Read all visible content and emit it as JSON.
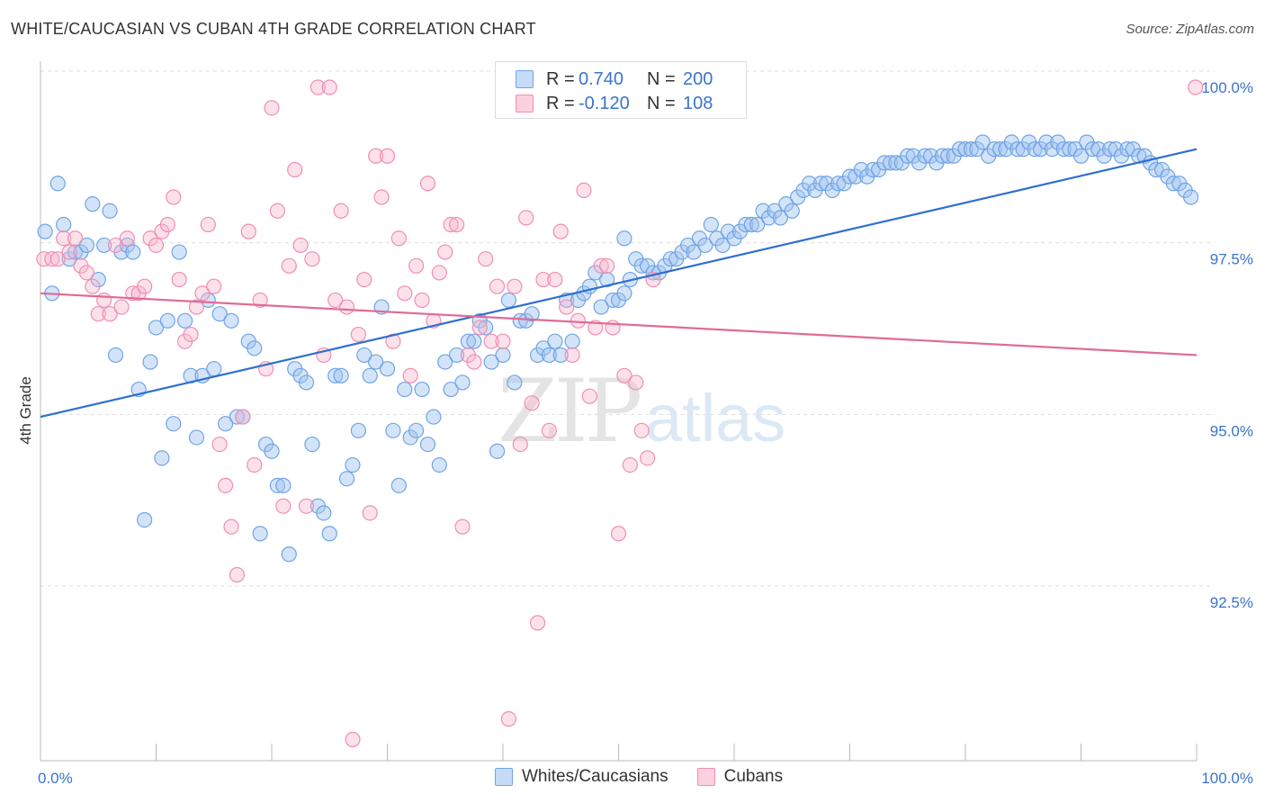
{
  "title": "WHITE/CAUCASIAN VS CUBAN 4TH GRADE CORRELATION CHART",
  "source": "Source: ZipAtlas.com",
  "watermark": "ZIPatlas",
  "legend_top": {
    "rows": [
      {
        "r_label": "R =",
        "r_value": "0.740",
        "n_label": "N =",
        "n_value": "200",
        "color": "#6fa4e6"
      },
      {
        "r_label": "R =",
        "r_value": "-0.120",
        "n_label": "N =",
        "n_value": "108",
        "color": "#ef8fb0"
      }
    ]
  },
  "legend_bottom": [
    {
      "label": "Whites/Caucasians",
      "color": "#6fa4e6"
    },
    {
      "label": "Cubans",
      "color": "#ef8fb0"
    }
  ],
  "chart_data": {
    "type": "scatter",
    "title": "WHITE/CAUCASIAN VS CUBAN 4TH GRADE CORRELATION CHART",
    "xlabel": "",
    "ylabel": "4th Grade",
    "xlim": [
      0,
      100
    ],
    "ylim": [
      90.0,
      100.4
    ],
    "x_tick_labels": [
      "0.0%",
      "100.0%"
    ],
    "y_ticks": [
      92.5,
      95.0,
      97.5,
      100.0
    ],
    "y_tick_labels": [
      "92.5%",
      "95.0%",
      "97.5%",
      "100.0%"
    ],
    "grid": true,
    "series": [
      {
        "name": "Whites/Caucasians",
        "color": "#6fa4e6",
        "trend": [
          [
            0,
            95.2
          ],
          [
            100,
            99.1
          ]
        ],
        "points": [
          [
            0.4,
            97.9
          ],
          [
            1,
            97
          ],
          [
            1.5,
            98.6
          ],
          [
            2,
            98
          ],
          [
            2.5,
            97.5
          ],
          [
            3,
            97.6
          ],
          [
            3.5,
            97.6
          ],
          [
            4,
            97.7
          ],
          [
            4.5,
            98.3
          ],
          [
            5,
            97.2
          ],
          [
            5.5,
            97.7
          ],
          [
            6,
            98.2
          ],
          [
            6.5,
            96.1
          ],
          [
            7,
            97.6
          ],
          [
            7.5,
            97.7
          ],
          [
            8,
            97.6
          ],
          [
            8.5,
            95.6
          ],
          [
            9,
            93.7
          ],
          [
            9.5,
            96
          ],
          [
            10,
            96.5
          ],
          [
            10.5,
            94.6
          ],
          [
            11,
            96.6
          ],
          [
            11.5,
            95.1
          ],
          [
            12,
            97.6
          ],
          [
            12.5,
            96.6
          ],
          [
            13,
            95.8
          ],
          [
            13.5,
            94.9
          ],
          [
            14,
            95.8
          ],
          [
            14.5,
            96.9
          ],
          [
            15,
            95.9
          ],
          [
            15.5,
            96.7
          ],
          [
            16,
            95.1
          ],
          [
            16.5,
            96.6
          ],
          [
            17,
            95.2
          ],
          [
            17.5,
            95.2
          ],
          [
            18,
            96.3
          ],
          [
            18.5,
            96.2
          ],
          [
            19,
            93.5
          ],
          [
            19.5,
            94.8
          ],
          [
            20,
            94.7
          ],
          [
            20.5,
            94.2
          ],
          [
            21,
            94.2
          ],
          [
            21.5,
            93.2
          ],
          [
            22,
            95.9
          ],
          [
            22.5,
            95.8
          ],
          [
            23,
            95.7
          ],
          [
            23.5,
            94.8
          ],
          [
            24,
            93.9
          ],
          [
            24.5,
            93.8
          ],
          [
            25,
            93.5
          ],
          [
            25.5,
            95.8
          ],
          [
            26,
            95.8
          ],
          [
            26.5,
            94.3
          ],
          [
            27,
            94.5
          ],
          [
            27.5,
            95
          ],
          [
            28,
            96.1
          ],
          [
            28.5,
            95.8
          ],
          [
            29,
            96
          ],
          [
            29.5,
            96.8
          ],
          [
            30,
            95.9
          ],
          [
            30.5,
            95
          ],
          [
            31,
            94.2
          ],
          [
            31.5,
            95.6
          ],
          [
            32,
            94.9
          ],
          [
            32.5,
            95
          ],
          [
            33,
            95.6
          ],
          [
            33.5,
            94.8
          ],
          [
            34,
            95.2
          ],
          [
            34.5,
            94.5
          ],
          [
            35,
            96
          ],
          [
            35.5,
            95.6
          ],
          [
            36,
            96.1
          ],
          [
            36.5,
            95.7
          ],
          [
            37,
            96.3
          ],
          [
            37.5,
            96.3
          ],
          [
            38,
            96.6
          ],
          [
            38.5,
            96.5
          ],
          [
            39,
            96
          ],
          [
            39.5,
            94.7
          ],
          [
            40,
            96.1
          ],
          [
            40.5,
            96.9
          ],
          [
            41,
            95.7
          ],
          [
            41.5,
            96.6
          ],
          [
            42,
            96.6
          ],
          [
            42.5,
            96.7
          ],
          [
            43,
            96.1
          ],
          [
            43.5,
            96.2
          ],
          [
            44,
            96.1
          ],
          [
            44.5,
            96.3
          ],
          [
            45,
            96.1
          ],
          [
            45.5,
            96.9
          ],
          [
            46,
            96.3
          ],
          [
            46.5,
            96.9
          ],
          [
            47,
            97
          ],
          [
            47.5,
            97.1
          ],
          [
            48,
            97.3
          ],
          [
            48.5,
            96.8
          ],
          [
            49,
            97.2
          ],
          [
            49.5,
            96.9
          ],
          [
            50,
            96.9
          ],
          [
            50.5,
            97
          ],
          [
            51,
            97.2
          ],
          [
            51.5,
            97.5
          ],
          [
            52,
            97.4
          ],
          [
            52.5,
            97.4
          ],
          [
            53,
            97.3
          ],
          [
            53.5,
            97.3
          ],
          [
            54,
            97.4
          ],
          [
            54.5,
            97.5
          ],
          [
            55,
            97.5
          ],
          [
            55.5,
            97.6
          ],
          [
            56,
            97.7
          ],
          [
            56.5,
            97.6
          ],
          [
            57,
            97.8
          ],
          [
            57.5,
            97.7
          ],
          [
            58,
            98
          ],
          [
            58.5,
            97.8
          ],
          [
            59,
            97.7
          ],
          [
            59.5,
            97.9
          ],
          [
            60,
            97.8
          ],
          [
            60.5,
            97.9
          ],
          [
            61,
            98
          ],
          [
            61.5,
            98
          ],
          [
            62,
            98
          ],
          [
            62.5,
            98.2
          ],
          [
            63,
            98.1
          ],
          [
            63.5,
            98.2
          ],
          [
            64,
            98.1
          ],
          [
            64.5,
            98.3
          ],
          [
            65,
            98.2
          ],
          [
            65.5,
            98.4
          ],
          [
            66,
            98.5
          ],
          [
            66.5,
            98.6
          ],
          [
            67,
            98.5
          ],
          [
            67.5,
            98.6
          ],
          [
            68,
            98.6
          ],
          [
            68.5,
            98.5
          ],
          [
            69,
            98.6
          ],
          [
            69.5,
            98.6
          ],
          [
            70,
            98.7
          ],
          [
            70.5,
            98.7
          ],
          [
            71,
            98.8
          ],
          [
            71.5,
            98.7
          ],
          [
            72,
            98.8
          ],
          [
            72.5,
            98.8
          ],
          [
            73,
            98.9
          ],
          [
            73.5,
            98.9
          ],
          [
            74,
            98.9
          ],
          [
            74.5,
            98.9
          ],
          [
            75,
            99
          ],
          [
            75.5,
            99
          ],
          [
            76,
            98.9
          ],
          [
            76.5,
            99
          ],
          [
            77,
            99
          ],
          [
            77.5,
            98.9
          ],
          [
            78,
            99
          ],
          [
            78.5,
            99
          ],
          [
            79,
            99
          ],
          [
            79.5,
            99.1
          ],
          [
            80,
            99.1
          ],
          [
            80.5,
            99.1
          ],
          [
            81,
            99.1
          ],
          [
            81.5,
            99.2
          ],
          [
            82,
            99
          ],
          [
            82.5,
            99.1
          ],
          [
            83,
            99.1
          ],
          [
            83.5,
            99.1
          ],
          [
            84,
            99.2
          ],
          [
            84.5,
            99.1
          ],
          [
            85,
            99.1
          ],
          [
            85.5,
            99.2
          ],
          [
            86,
            99.1
          ],
          [
            86.5,
            99.1
          ],
          [
            87,
            99.2
          ],
          [
            87.5,
            99.1
          ],
          [
            88,
            99.2
          ],
          [
            88.5,
            99.1
          ],
          [
            89,
            99.1
          ],
          [
            89.5,
            99.1
          ],
          [
            90,
            99
          ],
          [
            90.5,
            99.2
          ],
          [
            91,
            99.1
          ],
          [
            91.5,
            99.1
          ],
          [
            92,
            99
          ],
          [
            92.5,
            99.1
          ],
          [
            93,
            99.1
          ],
          [
            93.5,
            99
          ],
          [
            94,
            99.1
          ],
          [
            94.5,
            99.1
          ],
          [
            95,
            99
          ],
          [
            95.5,
            99
          ],
          [
            96,
            98.9
          ],
          [
            96.5,
            98.8
          ],
          [
            97,
            98.8
          ],
          [
            97.5,
            98.7
          ],
          [
            98,
            98.6
          ],
          [
            98.5,
            98.6
          ],
          [
            99,
            98.5
          ],
          [
            99.5,
            98.4
          ],
          [
            50.5,
            97.8
          ]
        ]
      },
      {
        "name": "Cubans",
        "color": "#ef8fb0",
        "trend": [
          [
            0,
            97.0
          ],
          [
            100,
            96.1
          ]
        ],
        "points": [
          [
            0.3,
            97.5
          ],
          [
            1,
            97.5
          ],
          [
            1.5,
            97.5
          ],
          [
            2,
            97.8
          ],
          [
            2.5,
            97.6
          ],
          [
            3,
            97.8
          ],
          [
            3.5,
            97.4
          ],
          [
            4,
            97.3
          ],
          [
            4.5,
            97.1
          ],
          [
            5,
            96.7
          ],
          [
            5.5,
            96.9
          ],
          [
            6,
            96.7
          ],
          [
            6.5,
            97.7
          ],
          [
            7,
            96.8
          ],
          [
            7.5,
            97.8
          ],
          [
            8,
            97
          ],
          [
            8.5,
            97
          ],
          [
            9,
            97.1
          ],
          [
            9.5,
            97.8
          ],
          [
            10,
            97.7
          ],
          [
            10.5,
            97.9
          ],
          [
            11,
            98
          ],
          [
            11.5,
            98.4
          ],
          [
            12,
            97.2
          ],
          [
            12.5,
            96.3
          ],
          [
            13,
            96.4
          ],
          [
            13.5,
            96.8
          ],
          [
            14,
            97
          ],
          [
            14.5,
            98
          ],
          [
            15,
            97.1
          ],
          [
            15.5,
            94.8
          ],
          [
            16,
            94.2
          ],
          [
            16.5,
            93.6
          ],
          [
            17,
            92.9
          ],
          [
            17.5,
            95.2
          ],
          [
            18,
            97.9
          ],
          [
            18.5,
            94.5
          ],
          [
            19,
            96.9
          ],
          [
            19.5,
            95.9
          ],
          [
            20,
            99.7
          ],
          [
            20.5,
            98.2
          ],
          [
            21,
            93.9
          ],
          [
            21.5,
            97.4
          ],
          [
            22,
            98.8
          ],
          [
            22.5,
            97.7
          ],
          [
            23,
            93.9
          ],
          [
            23.5,
            97.5
          ],
          [
            24,
            100
          ],
          [
            24.5,
            96.1
          ],
          [
            25,
            100
          ],
          [
            25.5,
            96.9
          ],
          [
            26,
            98.2
          ],
          [
            26.5,
            96.8
          ],
          [
            27,
            90.5
          ],
          [
            27.5,
            96.4
          ],
          [
            28,
            97.2
          ],
          [
            28.5,
            93.8
          ],
          [
            29,
            99
          ],
          [
            29.5,
            98.4
          ],
          [
            30,
            99
          ],
          [
            30.5,
            96.3
          ],
          [
            31,
            97.8
          ],
          [
            31.5,
            97
          ],
          [
            32,
            95.8
          ],
          [
            32.5,
            97.4
          ],
          [
            33,
            96.9
          ],
          [
            33.5,
            98.6
          ],
          [
            34,
            96.6
          ],
          [
            34.5,
            97.3
          ],
          [
            35,
            97.6
          ],
          [
            35.5,
            98
          ],
          [
            36,
            98
          ],
          [
            36.5,
            93.6
          ],
          [
            37,
            96.1
          ],
          [
            37.5,
            96
          ],
          [
            38,
            96.5
          ],
          [
            38.5,
            97.5
          ],
          [
            39,
            96.3
          ],
          [
            39.5,
            97.1
          ],
          [
            40,
            96.3
          ],
          [
            40.5,
            90.8
          ],
          [
            41,
            97.1
          ],
          [
            41.5,
            94.8
          ],
          [
            42,
            98.1
          ],
          [
            42.5,
            95.4
          ],
          [
            43,
            92.2
          ],
          [
            43.5,
            97.2
          ],
          [
            44,
            95
          ],
          [
            44.5,
            97.2
          ],
          [
            45,
            97.9
          ],
          [
            45.5,
            96.8
          ],
          [
            46,
            96.1
          ],
          [
            46.5,
            96.6
          ],
          [
            47,
            98.5
          ],
          [
            47.5,
            95.5
          ],
          [
            48,
            96.5
          ],
          [
            48.5,
            97.4
          ],
          [
            49,
            97.4
          ],
          [
            49.5,
            96.5
          ],
          [
            50,
            93.5
          ],
          [
            50.5,
            95.8
          ],
          [
            51,
            94.5
          ],
          [
            51.5,
            95.7
          ],
          [
            52,
            95
          ],
          [
            52.5,
            94.6
          ],
          [
            53,
            97.2
          ],
          [
            99.9,
            100
          ]
        ]
      }
    ]
  }
}
